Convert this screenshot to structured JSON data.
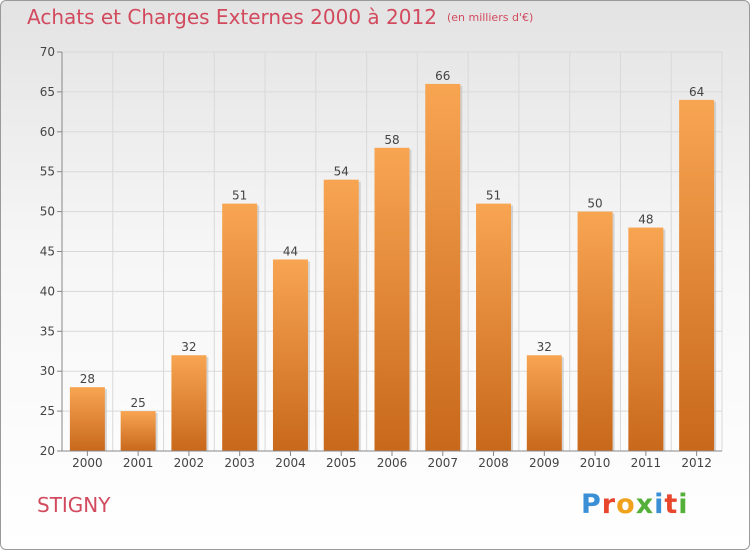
{
  "header": {
    "title": "Achats et Charges Externes 2000 à 2012",
    "unit": "(en milliers d'€)"
  },
  "footer": {
    "commune": "STIGNY",
    "brand_letters": [
      "P",
      "r",
      "o",
      "x",
      "i",
      "t",
      "i"
    ]
  },
  "colors": {
    "title": "#d24a5e",
    "bar_top": "#f8a552",
    "bar_bottom": "#c8681b",
    "grid": "#d9d9d9",
    "axis": "#888888"
  },
  "chart_data": {
    "type": "bar",
    "title": "Achats et Charges Externes 2000 à 2012",
    "xlabel": "",
    "ylabel": "",
    "categories": [
      "2000",
      "2001",
      "2002",
      "2003",
      "2004",
      "2005",
      "2006",
      "2007",
      "2008",
      "2009",
      "2010",
      "2011",
      "2012"
    ],
    "values": [
      28,
      25,
      32,
      51,
      44,
      54,
      58,
      66,
      51,
      32,
      50,
      48,
      64
    ],
    "ylim": [
      20,
      70
    ],
    "yticks": [
      20,
      25,
      30,
      35,
      40,
      45,
      50,
      55,
      60,
      65,
      70
    ],
    "grid": true,
    "legend": "none"
  }
}
